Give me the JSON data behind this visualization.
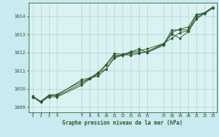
{
  "title": "Graphe pression niveau de la mer (hPa)",
  "bg_color": "#c8eaf0",
  "plot_bg_color": "#daf2f2",
  "grid_color": "#b0d0d0",
  "line_color": "#2d5a2d",
  "marker_color": "#2d5a2d",
  "ylim": [
    1008.7,
    1014.75
  ],
  "yticks": [
    1009,
    1010,
    1011,
    1012,
    1013,
    1014
  ],
  "xlim": [
    0.5,
    23.5
  ],
  "x_tick_positions": [
    1,
    2,
    3,
    4,
    7,
    8,
    9,
    10,
    11,
    12,
    13,
    14,
    15,
    17,
    18,
    19,
    20,
    21,
    22,
    23
  ],
  "series": [
    [
      1.0,
      1009.6,
      2.0,
      1009.3,
      3.0,
      1009.65,
      4.0,
      1009.6,
      7.0,
      1010.3,
      8.0,
      1010.6,
      9.0,
      1010.7,
      10.0,
      1011.1,
      11.0,
      1011.7,
      12.0,
      1011.85,
      13.0,
      1012.0,
      14.0,
      1012.1,
      15.0,
      1012.2,
      17.0,
      1012.5,
      18.0,
      1012.8,
      19.0,
      1013.1,
      20.0,
      1013.2,
      21.0,
      1013.9,
      22.0,
      1014.2,
      23.0,
      1014.5
    ],
    [
      1.0,
      1009.55,
      2.0,
      1009.25,
      3.0,
      1009.55,
      4.0,
      1009.55,
      7.0,
      1010.2,
      8.0,
      1010.55,
      9.0,
      1010.8,
      10.0,
      1011.3,
      11.0,
      1011.85,
      12.0,
      1011.85,
      13.0,
      1011.95,
      14.0,
      1012.0,
      15.0,
      1012.05,
      17.0,
      1012.45,
      18.0,
      1013.25,
      19.0,
      1013.25,
      20.0,
      1013.25,
      21.0,
      1014.05,
      22.0,
      1014.15,
      23.0,
      1014.5
    ],
    [
      1.0,
      1009.55,
      2.0,
      1009.3,
      3.0,
      1009.6,
      4.0,
      1009.65,
      7.0,
      1010.5,
      8.0,
      1010.6,
      9.0,
      1010.9,
      10.0,
      1011.35,
      11.0,
      1011.95,
      12.0,
      1011.9,
      13.0,
      1012.05,
      14.0,
      1012.2,
      15.0,
      1012.0,
      17.0,
      1012.4,
      18.0,
      1013.1,
      19.0,
      1013.3,
      20.0,
      1013.4,
      21.0,
      1014.1,
      22.0,
      1014.2,
      23.0,
      1014.5
    ],
    [
      1.0,
      1009.55,
      2.0,
      1009.3,
      3.0,
      1009.65,
      4.0,
      1009.7,
      7.0,
      1010.4,
      8.0,
      1010.55,
      9.0,
      1010.85,
      10.0,
      1011.1,
      11.0,
      1011.75,
      12.0,
      1011.9,
      13.0,
      1011.85,
      14.0,
      1011.95,
      15.0,
      1012.05,
      17.0,
      1012.5,
      18.0,
      1013.0,
      19.0,
      1012.8,
      20.0,
      1013.15,
      21.0,
      1013.85,
      22.0,
      1014.15,
      23.0,
      1014.45
    ]
  ]
}
